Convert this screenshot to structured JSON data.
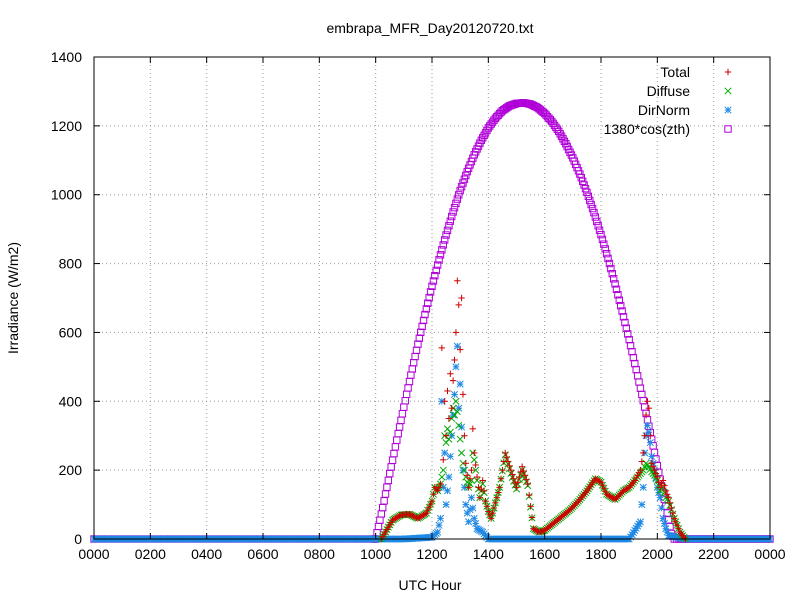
{
  "chart_data": {
    "type": "scatter",
    "title": "embrapa_MFR_Day20120720.txt",
    "xlabel": "UTC Hour",
    "ylabel": "Irradiance (W/m2)",
    "xlim": [
      0,
      24
    ],
    "ylim": [
      0,
      1400
    ],
    "x_ticks": [
      {
        "value": 0,
        "label": "0000"
      },
      {
        "value": 2,
        "label": "0200"
      },
      {
        "value": 4,
        "label": "0400"
      },
      {
        "value": 6,
        "label": "0600"
      },
      {
        "value": 8,
        "label": "0800"
      },
      {
        "value": 10,
        "label": "1000"
      },
      {
        "value": 12,
        "label": "1200"
      },
      {
        "value": 14,
        "label": "1400"
      },
      {
        "value": 16,
        "label": "1600"
      },
      {
        "value": 18,
        "label": "1800"
      },
      {
        "value": 20,
        "label": "2000"
      },
      {
        "value": 22,
        "label": "2200"
      },
      {
        "value": 24,
        "label": "0000"
      }
    ],
    "y_ticks": [
      0,
      200,
      400,
      600,
      800,
      1000,
      1200,
      1400
    ],
    "grid": true,
    "legend_position": "top-right",
    "series": [
      {
        "name": "Total",
        "marker": "plus",
        "color": "#cc0000",
        "points": [
          [
            10.2,
            0
          ],
          [
            10.6,
            55
          ],
          [
            10.9,
            70
          ],
          [
            11.2,
            72
          ],
          [
            11.5,
            60
          ],
          [
            11.8,
            75
          ],
          [
            12.0,
            110
          ],
          [
            12.1,
            150
          ],
          [
            12.2,
            140
          ],
          [
            12.3,
            160
          ],
          [
            12.35,
            555
          ],
          [
            12.4,
            230
          ],
          [
            12.45,
            400
          ],
          [
            12.5,
            300
          ],
          [
            12.55,
            430
          ],
          [
            12.6,
            350
          ],
          [
            12.65,
            480
          ],
          [
            12.7,
            380
          ],
          [
            12.75,
            460
          ],
          [
            12.8,
            520
          ],
          [
            12.85,
            600
          ],
          [
            12.9,
            750
          ],
          [
            12.95,
            680
          ],
          [
            13.0,
            550
          ],
          [
            13.05,
            700
          ],
          [
            13.1,
            420
          ],
          [
            13.15,
            300
          ],
          [
            13.2,
            220
          ],
          [
            13.3,
            150
          ],
          [
            13.4,
            200
          ],
          [
            13.45,
            320
          ],
          [
            13.5,
            250
          ],
          [
            13.6,
            180
          ],
          [
            13.7,
            120
          ],
          [
            13.8,
            170
          ],
          [
            13.9,
            110
          ],
          [
            14.0,
            80
          ],
          [
            14.1,
            60
          ],
          [
            14.2,
            90
          ],
          [
            14.4,
            150
          ],
          [
            14.6,
            250
          ],
          [
            14.8,
            200
          ],
          [
            15.0,
            150
          ],
          [
            15.2,
            210
          ],
          [
            15.4,
            160
          ],
          [
            15.6,
            30
          ],
          [
            15.8,
            20
          ],
          [
            16.0,
            25
          ],
          [
            16.3,
            45
          ],
          [
            16.6,
            65
          ],
          [
            16.9,
            85
          ],
          [
            17.2,
            110
          ],
          [
            17.5,
            140
          ],
          [
            17.8,
            175
          ],
          [
            18.0,
            165
          ],
          [
            18.2,
            130
          ],
          [
            18.5,
            115
          ],
          [
            18.8,
            140
          ],
          [
            19.0,
            150
          ],
          [
            19.2,
            170
          ],
          [
            19.4,
            200
          ],
          [
            19.5,
            250
          ],
          [
            19.55,
            300
          ],
          [
            19.6,
            360
          ],
          [
            19.65,
            400
          ],
          [
            19.7,
            380
          ],
          [
            19.75,
            300
          ],
          [
            19.8,
            220
          ],
          [
            19.9,
            200
          ],
          [
            20.0,
            180
          ],
          [
            20.1,
            150
          ],
          [
            20.2,
            170
          ],
          [
            20.3,
            140
          ],
          [
            20.4,
            120
          ],
          [
            20.6,
            60
          ],
          [
            20.8,
            20
          ],
          [
            21.0,
            0
          ]
        ]
      },
      {
        "name": "Diffuse",
        "marker": "cross",
        "color": "#00aa00",
        "points": [
          [
            10.2,
            0
          ],
          [
            10.6,
            55
          ],
          [
            10.9,
            70
          ],
          [
            11.2,
            72
          ],
          [
            11.5,
            60
          ],
          [
            11.8,
            75
          ],
          [
            12.0,
            110
          ],
          [
            12.1,
            150
          ],
          [
            12.2,
            140
          ],
          [
            12.3,
            160
          ],
          [
            12.4,
            200
          ],
          [
            12.45,
            300
          ],
          [
            12.5,
            280
          ],
          [
            12.55,
            320
          ],
          [
            12.6,
            290
          ],
          [
            12.65,
            310
          ],
          [
            12.7,
            350
          ],
          [
            12.75,
            380
          ],
          [
            12.8,
            360
          ],
          [
            12.85,
            400
          ],
          [
            12.9,
            370
          ],
          [
            12.95,
            330
          ],
          [
            13.0,
            290
          ],
          [
            13.05,
            250
          ],
          [
            13.1,
            220
          ],
          [
            13.15,
            200
          ],
          [
            13.2,
            180
          ],
          [
            13.3,
            150
          ],
          [
            13.4,
            170
          ],
          [
            13.45,
            250
          ],
          [
            13.5,
            230
          ],
          [
            13.6,
            170
          ],
          [
            13.7,
            120
          ],
          [
            13.8,
            160
          ],
          [
            13.9,
            110
          ],
          [
            14.0,
            80
          ],
          [
            14.1,
            60
          ],
          [
            14.2,
            90
          ],
          [
            14.4,
            150
          ],
          [
            14.6,
            245
          ],
          [
            14.8,
            190
          ],
          [
            15.0,
            145
          ],
          [
            15.2,
            200
          ],
          [
            15.4,
            155
          ],
          [
            15.6,
            30
          ],
          [
            15.8,
            20
          ],
          [
            16.0,
            25
          ],
          [
            16.3,
            45
          ],
          [
            16.6,
            65
          ],
          [
            16.9,
            85
          ],
          [
            17.2,
            110
          ],
          [
            17.5,
            140
          ],
          [
            17.8,
            175
          ],
          [
            18.0,
            165
          ],
          [
            18.2,
            130
          ],
          [
            18.5,
            115
          ],
          [
            18.8,
            140
          ],
          [
            19.0,
            150
          ],
          [
            19.2,
            170
          ],
          [
            19.4,
            190
          ],
          [
            19.5,
            200
          ],
          [
            19.6,
            220
          ],
          [
            19.7,
            210
          ],
          [
            19.8,
            195
          ],
          [
            19.9,
            185
          ],
          [
            20.0,
            170
          ],
          [
            20.1,
            140
          ],
          [
            20.2,
            150
          ],
          [
            20.3,
            120
          ],
          [
            20.4,
            110
          ],
          [
            20.6,
            60
          ],
          [
            20.8,
            20
          ],
          [
            21.0,
            0
          ]
        ]
      },
      {
        "name": "DirNorm",
        "marker": "star",
        "color": "#1e88e5",
        "points": [
          [
            0,
            0
          ],
          [
            1,
            0
          ],
          [
            2,
            0
          ],
          [
            3,
            0
          ],
          [
            4,
            0
          ],
          [
            5,
            0
          ],
          [
            6,
            0
          ],
          [
            7,
            0
          ],
          [
            8,
            0
          ],
          [
            9,
            0
          ],
          [
            10,
            0
          ],
          [
            11,
            0
          ],
          [
            12.0,
            5
          ],
          [
            12.2,
            20
          ],
          [
            12.3,
            60
          ],
          [
            12.35,
            400
          ],
          [
            12.4,
            150
          ],
          [
            12.45,
            250
          ],
          [
            12.5,
            100
          ],
          [
            12.6,
            180
          ],
          [
            12.7,
            300
          ],
          [
            12.8,
            420
          ],
          [
            12.85,
            500
          ],
          [
            12.9,
            560
          ],
          [
            12.95,
            380
          ],
          [
            13.0,
            450
          ],
          [
            13.1,
            200
          ],
          [
            13.2,
            100
          ],
          [
            13.3,
            50
          ],
          [
            13.4,
            120
          ],
          [
            13.5,
            60
          ],
          [
            13.6,
            30
          ],
          [
            13.8,
            20
          ],
          [
            14.0,
            0
          ],
          [
            15,
            0
          ],
          [
            16,
            0
          ],
          [
            17,
            0
          ],
          [
            18,
            0
          ],
          [
            19.0,
            0
          ],
          [
            19.4,
            50
          ],
          [
            19.5,
            150
          ],
          [
            19.55,
            250
          ],
          [
            19.6,
            300
          ],
          [
            19.65,
            330
          ],
          [
            19.7,
            310
          ],
          [
            19.75,
            280
          ],
          [
            19.8,
            240
          ],
          [
            19.9,
            200
          ],
          [
            20.0,
            150
          ],
          [
            20.1,
            120
          ],
          [
            20.2,
            60
          ],
          [
            20.3,
            30
          ],
          [
            20.4,
            10
          ],
          [
            21,
            0
          ],
          [
            22,
            0
          ],
          [
            23,
            0
          ],
          [
            24,
            0
          ]
        ]
      },
      {
        "name": "1380*cos(zth)",
        "marker": "square",
        "color": "#b000d8",
        "points": [
          [
            0,
            0
          ],
          [
            9.9,
            0
          ],
          [
            10.0,
            0
          ],
          [
            10.25,
            91
          ],
          [
            10.5,
            190
          ],
          [
            10.75,
            287
          ],
          [
            11.0,
            383
          ],
          [
            11.25,
            476
          ],
          [
            11.5,
            566
          ],
          [
            11.75,
            652
          ],
          [
            12.0,
            734
          ],
          [
            12.25,
            811
          ],
          [
            12.5,
            883
          ],
          [
            12.75,
            950
          ],
          [
            13.0,
            1012
          ],
          [
            13.25,
            1067
          ],
          [
            13.5,
            1116
          ],
          [
            13.75,
            1158
          ],
          [
            14.0,
            1194
          ],
          [
            14.25,
            1222
          ],
          [
            14.5,
            1244
          ],
          [
            14.75,
            1258
          ],
          [
            15.0,
            1265
          ],
          [
            15.25,
            1267
          ],
          [
            15.5,
            1263
          ],
          [
            15.75,
            1253
          ],
          [
            16.0,
            1236
          ],
          [
            16.25,
            1213
          ],
          [
            16.5,
            1184
          ],
          [
            16.75,
            1148
          ],
          [
            17.0,
            1107
          ],
          [
            17.25,
            1060
          ],
          [
            17.5,
            1007
          ],
          [
            17.75,
            948
          ],
          [
            18.0,
            884
          ],
          [
            18.25,
            815
          ],
          [
            18.5,
            741
          ],
          [
            18.75,
            662
          ],
          [
            19.0,
            579
          ],
          [
            19.25,
            492
          ],
          [
            19.5,
            402
          ],
          [
            19.75,
            309
          ],
          [
            20.0,
            213
          ],
          [
            20.25,
            115
          ],
          [
            20.5,
            16
          ],
          [
            20.6,
            0
          ],
          [
            24,
            0
          ]
        ]
      }
    ]
  }
}
